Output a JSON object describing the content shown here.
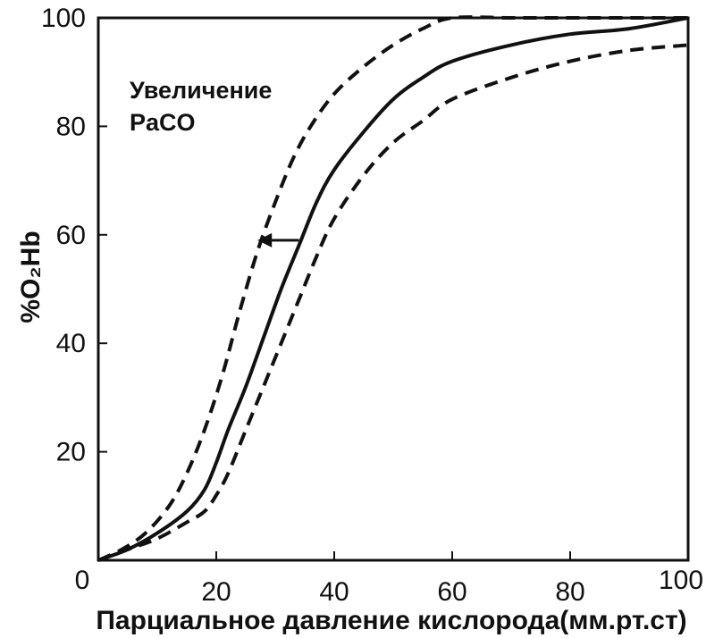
{
  "chart_data": {
    "type": "line",
    "title": "",
    "xlabel": "Парциальное давление кислорода(мм.рт.ст)",
    "ylabel": "%O₂Hb",
    "xlim": [
      0,
      100
    ],
    "ylim": [
      0,
      100
    ],
    "x_ticks": [
      {
        "value": 0,
        "label": "0"
      },
      {
        "value": 20,
        "label": "20"
      },
      {
        "value": 40,
        "label": "40"
      },
      {
        "value": 60,
        "label": "60"
      },
      {
        "value": 80,
        "label": "80"
      },
      {
        "value": 100,
        "label": "100"
      }
    ],
    "y_ticks": [
      {
        "value": 20,
        "label": "20"
      },
      {
        "value": 40,
        "label": "40"
      },
      {
        "value": 60,
        "label": "60"
      },
      {
        "value": 80,
        "label": "80"
      },
      {
        "value": 100,
        "label": "100"
      }
    ],
    "grid": false,
    "annotation": {
      "line1": "Увеличение",
      "line2": "PaCO",
      "arrow_from": {
        "x": 34,
        "y": 59
      },
      "arrow_to": {
        "x": 27,
        "y": 59
      }
    },
    "series": [
      {
        "style": "dashed",
        "color": "#111111",
        "x": [
          0,
          4,
          8,
          12,
          15,
          18,
          21,
          24,
          27,
          30,
          33,
          36,
          40,
          45,
          50,
          55,
          60,
          70,
          80,
          90,
          100
        ],
        "y": [
          0,
          2,
          5,
          10,
          16,
          24,
          34,
          46,
          57,
          66,
          74,
          80,
          86,
          91,
          95,
          98,
          100,
          100,
          100,
          100,
          100
        ]
      },
      {
        "style": "solid",
        "color": "#111111",
        "x": [
          0,
          5,
          10,
          15,
          18,
          20,
          22,
          25,
          28,
          31,
          34,
          37,
          40,
          45,
          50,
          55,
          60,
          70,
          80,
          90,
          100
        ],
        "y": [
          0,
          2,
          5,
          9,
          13,
          18,
          24,
          32,
          41,
          50,
          58,
          66,
          72,
          79,
          85,
          89,
          92,
          95,
          97,
          98,
          100
        ]
      },
      {
        "style": "dashed",
        "color": "#111111",
        "x": [
          0,
          5,
          10,
          15,
          18,
          20,
          22,
          25,
          28,
          31,
          34,
          37,
          40,
          45,
          50,
          55,
          60,
          70,
          80,
          90,
          100
        ],
        "y": [
          0,
          2,
          4,
          7,
          9,
          12,
          16,
          24,
          32,
          40,
          48,
          56,
          63,
          71,
          77,
          81,
          85,
          89,
          92,
          94,
          95
        ]
      }
    ]
  }
}
